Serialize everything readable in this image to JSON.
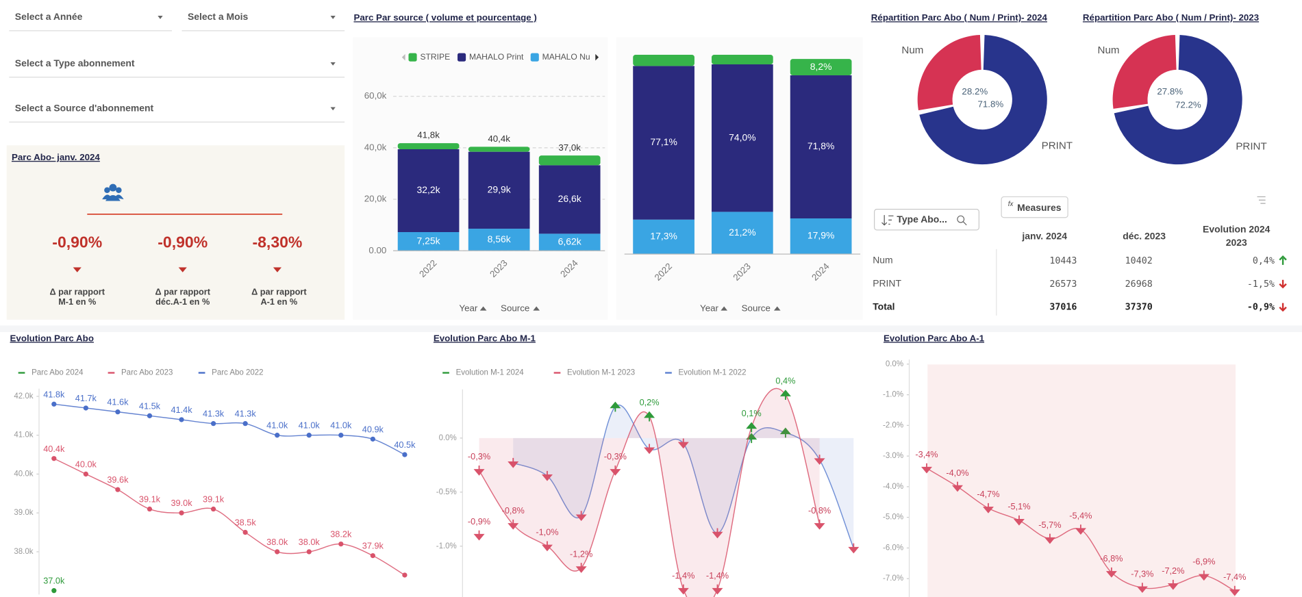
{
  "filters": [
    "Select a Année",
    "Select a Mois",
    "Select a Type abonnement",
    "Select a Source d'abonnement"
  ],
  "kpi": {
    "title": "Parc Abo- janv. 2024",
    "items": [
      {
        "value": "-0,90%",
        "label": [
          "Δ par rapport",
          "M-1 en %"
        ]
      },
      {
        "value": "-0,90%",
        "label": [
          "Δ par rapport",
          "déc.A-1 en %"
        ]
      },
      {
        "value": "-8,30%",
        "label": [
          "Δ par rapport",
          "A-1 en %"
        ]
      }
    ]
  },
  "table": {
    "search": "Type Abo...",
    "button": "Measures",
    "columns": [
      [
        "janv. 2024"
      ],
      [
        "déc. 2023"
      ],
      [
        "Evolution 2024",
        "2023"
      ]
    ],
    "rows": [
      [
        "Num",
        "10443",
        "10402",
        "0,4%"
      ],
      [
        "PRINT",
        "26573",
        "26968",
        "-1,5%"
      ],
      [
        "Total",
        "37016",
        "37370",
        "-0,9%"
      ]
    ]
  },
  "chart_data": [
    {
      "type": "bar",
      "stacked": true,
      "title": "Parc Par source ( volume et pourcentage )",
      "categories": [
        "2022",
        "2023",
        "2024"
      ],
      "series": [
        {
          "name": "MAHALO Nu",
          "color": "#3aa5e3",
          "values": [
            7250,
            8560,
            6620
          ],
          "value_labels": [
            "7,25k",
            "8,56k",
            "6,62k"
          ]
        },
        {
          "name": "MAHALO Print",
          "color": "#2b2a7d",
          "values": [
            32200,
            29900,
            26600
          ],
          "value_labels": [
            "32,2k",
            "29,9k",
            "26,6k"
          ]
        },
        {
          "name": "STRIPE",
          "color": "#36b44a",
          "values": [
            2350,
            1940,
            3780
          ]
        }
      ],
      "totals": [
        41800,
        40400,
        37000
      ],
      "total_labels": [
        "41,8k",
        "40,4k",
        "37,0k"
      ],
      "ylim": [
        0,
        65000
      ],
      "yticks": [
        {
          "value": 0,
          "label": "0.00"
        },
        {
          "value": 20000,
          "label": "20,0k"
        },
        {
          "value": 40000,
          "label": "40,0k"
        },
        {
          "value": 60000,
          "label": "60,0k"
        }
      ],
      "grid": true,
      "axis_labels": [
        "Year",
        "Source"
      ]
    },
    {
      "type": "bar",
      "stacked": true,
      "categories": [
        "2022",
        "2023",
        "2024"
      ],
      "series": [
        {
          "name": "MAHALO Nu",
          "color": "#3aa5e3",
          "values": [
            17.3,
            21.2,
            17.9
          ],
          "value_labels": [
            "17,3%",
            "21,2%",
            "17,9%"
          ]
        },
        {
          "name": "MAHALO Print",
          "color": "#2b2a7d",
          "values": [
            77.1,
            74.0,
            71.8
          ],
          "value_labels": [
            "77,1%",
            "74,0%",
            "71,8%"
          ]
        },
        {
          "name": "STRIPE",
          "color": "#36b44a",
          "values": [
            5.6,
            4.8,
            8.2
          ],
          "value_labels": [
            null,
            null,
            "8,2%"
          ]
        }
      ],
      "ylim": [
        0,
        100
      ],
      "axis_labels": [
        "Year",
        "Source"
      ]
    },
    {
      "type": "pie",
      "donut": true,
      "title": "Répartition Parc Abo ( Num / Print)- 2024",
      "categories": [
        "Num",
        "PRINT"
      ],
      "values": [
        28.2,
        71.8
      ],
      "value_labels": [
        "28.2%",
        "71.8%"
      ],
      "colors": [
        "#d63353",
        "#28348c"
      ]
    },
    {
      "type": "pie",
      "donut": true,
      "title": "Répartition Parc Abo ( Num / Print)- 2023",
      "categories": [
        "Num",
        "PRINT"
      ],
      "values": [
        27.8,
        72.2
      ],
      "value_labels": [
        "27.8%",
        "72.2%"
      ],
      "colors": [
        "#d63353",
        "#28348c"
      ]
    },
    {
      "type": "line",
      "title": "Evolution Parc Abo",
      "categories": [
        null,
        null,
        null,
        null,
        null,
        null,
        null,
        null,
        null,
        null,
        null,
        null
      ],
      "series": [
        {
          "name": "Parc Abo 2024",
          "color": "#2e9a3a",
          "values": [
            37000,
            null,
            null,
            null,
            null,
            null,
            null,
            null,
            null,
            null,
            null,
            null
          ],
          "value_labels": [
            "37.0k",
            null,
            null,
            null,
            null,
            null,
            null,
            null,
            null,
            null,
            null,
            null
          ]
        },
        {
          "name": "Parc Abo 2023",
          "color": "#d9536b",
          "values": [
            40400,
            40000,
            39600,
            39100,
            39000,
            39100,
            38500,
            38000,
            38000,
            38200,
            37900,
            37400
          ],
          "value_labels": [
            "40.4k",
            "40.0k",
            "39.6k",
            "39.1k",
            "39.0k",
            "39.1k",
            "38.5k",
            "38.0k",
            "38.0k",
            "38.2k",
            "37.9k",
            null
          ]
        },
        {
          "name": "Parc Abo 2022",
          "color": "#4a6fc9",
          "values": [
            41800,
            41700,
            41600,
            41500,
            41400,
            41300,
            41300,
            41000,
            41000,
            41000,
            40900,
            40500
          ],
          "value_labels": [
            "41.8k",
            "41.7k",
            "41.6k",
            "41.5k",
            "41.4k",
            "41.3k",
            "41.3k",
            "41.0k",
            "41.0k",
            "41.0k",
            "40.9k",
            "40.5k"
          ]
        }
      ],
      "ylim": [
        36900,
        42200
      ],
      "yticks": [
        {
          "value": 38000,
          "label": "38.0k"
        },
        {
          "value": 39000,
          "label": "39.0k"
        },
        {
          "value": 40000,
          "label": "40.0k"
        },
        {
          "value": 41000,
          "label": "41.0k"
        },
        {
          "value": 42000,
          "label": "42.0k"
        }
      ]
    },
    {
      "type": "line",
      "title": "Evolution Parc Abo M-1",
      "categories": [
        null,
        null,
        null,
        null,
        null,
        null,
        null,
        null,
        null,
        null,
        null,
        null
      ],
      "series": [
        {
          "name": "Evolution M-1 2024",
          "color": "#2e9a3a",
          "values": [
            -0.9,
            null,
            null,
            null,
            null,
            null,
            null,
            null,
            null,
            null,
            null,
            null
          ],
          "value_labels": [
            "-0,9%",
            null,
            null,
            null,
            null,
            null,
            null,
            null,
            null,
            null,
            null,
            null
          ]
        },
        {
          "name": "Evolution M-1 2023",
          "color": "#d9536b",
          "values": [
            -0.3,
            -0.8,
            -1.0,
            -1.2,
            -0.3,
            0.2,
            -1.4,
            -1.4,
            0.1,
            0.4,
            -0.8,
            null
          ],
          "value_labels": [
            "-0,3%",
            "-0,8%",
            "-1,0%",
            "-1,2%",
            "-0,3%",
            "0,2%",
            "-1,4%",
            "-1,4%",
            "0,1%",
            "0,4%",
            "-0,8%",
            null
          ]
        },
        {
          "name": "Evolution M-1 2022",
          "color": "#5b7fd0",
          "values": [
            null,
            -0.23,
            -0.35,
            -0.72,
            0.29,
            -0.1,
            -0.05,
            -0.88,
            0.0,
            0.05,
            -0.2,
            -1.02
          ]
        }
      ],
      "ylim": [
        -1.47,
        0.45
      ],
      "yticks": [
        {
          "value": 0,
          "label": "0.0%"
        },
        {
          "value": -0.5,
          "label": "-0.5%"
        },
        {
          "value": -1,
          "label": "-1.0%"
        }
      ]
    },
    {
      "type": "line",
      "title": "Evolution Parc Abo A-1",
      "categories": [
        null,
        null,
        null,
        null,
        null,
        null,
        null,
        null,
        null,
        null,
        null
      ],
      "color": "#d9536b",
      "values": [
        -3.4,
        -4.0,
        -4.7,
        -5.1,
        -5.7,
        -5.4,
        -6.8,
        -7.3,
        -7.2,
        -6.9,
        -7.4
      ],
      "value_labels": [
        "-3,4%",
        "-4,0%",
        "-4,7%",
        "-5,1%",
        "-5,7%",
        "-5,4%",
        "-6,8%",
        "-7,3%",
        "-7,2%",
        "-6,9%",
        "-7,4%"
      ],
      "ylim": [
        -7.6,
        0.15
      ],
      "yticks": [
        {
          "value": 0,
          "label": "0.0%"
        },
        {
          "value": -1,
          "label": "-1.0%"
        },
        {
          "value": -2,
          "label": "-2.0%"
        },
        {
          "value": -3,
          "label": "-3.0%"
        },
        {
          "value": -4,
          "label": "-4.0%"
        },
        {
          "value": -5,
          "label": "-5.0%"
        },
        {
          "value": -6,
          "label": "-6.0%"
        },
        {
          "value": -7,
          "label": "-7.0%"
        }
      ]
    }
  ]
}
